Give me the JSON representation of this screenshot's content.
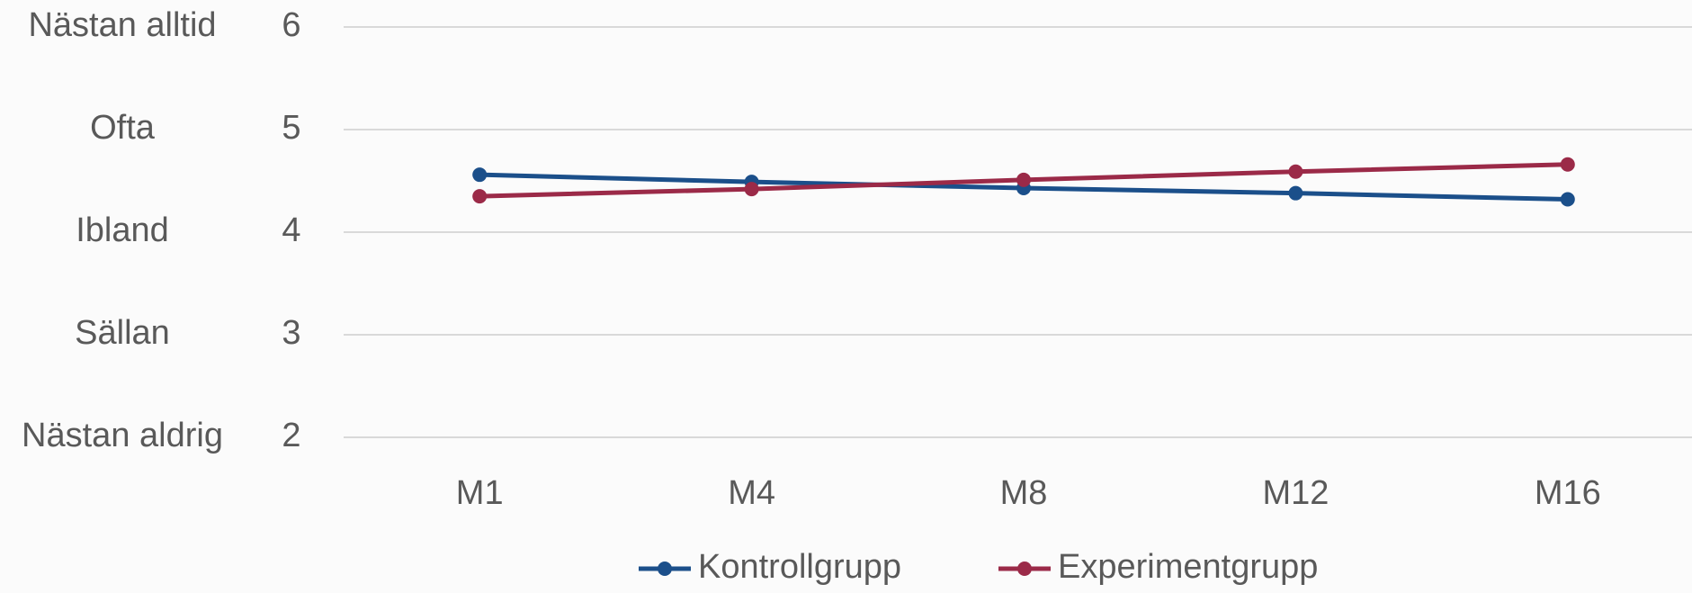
{
  "chart_data": {
    "type": "line",
    "categories": [
      "M1",
      "M4",
      "M8",
      "M12",
      "M16"
    ],
    "series": [
      {
        "name": "Kontrollgrupp",
        "color": "#1b4f8a",
        "values": [
          4.56,
          4.49,
          4.43,
          4.38,
          4.32
        ]
      },
      {
        "name": "Experimentgrupp",
        "color": "#9b2a48",
        "values": [
          4.35,
          4.42,
          4.51,
          4.59,
          4.66
        ]
      }
    ],
    "ylim": [
      2,
      6
    ],
    "yticks": [
      2,
      3,
      4,
      5,
      6
    ],
    "ytick_descriptions": [
      "Nästan aldrig",
      "Sällan",
      "Ibland",
      "Ofta",
      "Nästan alltid"
    ],
    "grid": true,
    "legend": "bottom"
  }
}
